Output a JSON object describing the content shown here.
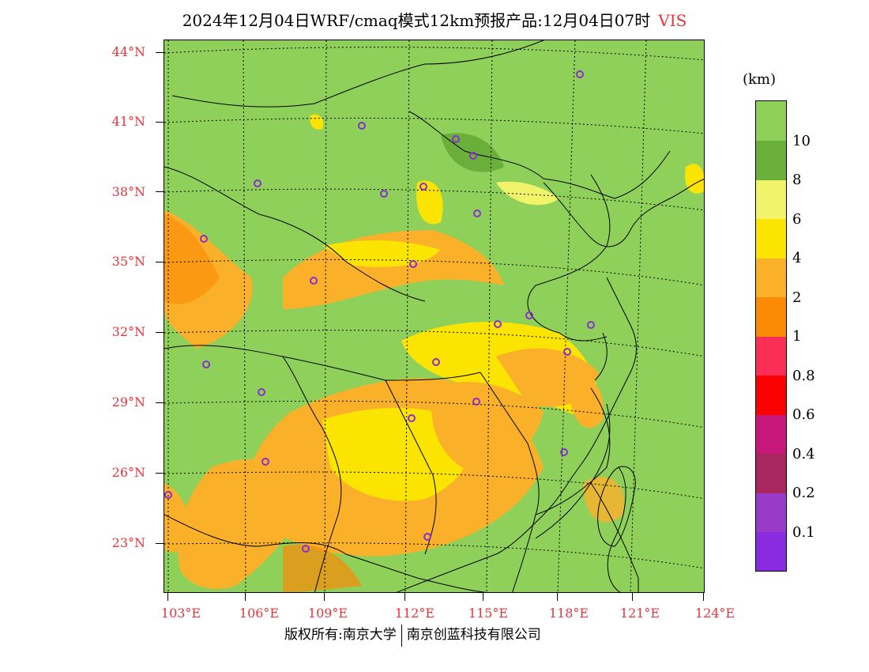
{
  "title": {
    "text": "2024年12月04日WRF/cmaq模式12km预报产品:12月04日07时",
    "variable": "VIS"
  },
  "colors": {
    "axis_label": "#e8343a",
    "city_marker": "#8a2fcf",
    "background_land": "#8fd05a"
  },
  "axes": {
    "lat_labels": [
      "44°N",
      "41°N",
      "38°N",
      "35°N",
      "32°N",
      "29°N",
      "26°N",
      "23°N"
    ],
    "lon_labels": [
      "103°E",
      "106°E",
      "109°E",
      "112°E",
      "115°E",
      "118°E",
      "121°E",
      "124°E"
    ]
  },
  "legend": {
    "unit": "(km)",
    "labels": [
      "10",
      "8",
      "6",
      "4",
      "2",
      "1",
      "0.8",
      "0.6",
      "0.4",
      "0.2",
      "0.1"
    ],
    "colors": [
      "#8fd05a",
      "#6aaf3a",
      "#f1f36a",
      "#fbe400",
      "#fbb02a",
      "#fb8a05",
      "#fb2e55",
      "#fb0000",
      "#c8177a",
      "#a8275e",
      "#9a3ac8",
      "#8a2be2"
    ]
  },
  "footer": {
    "left": "版权所有:南京大学",
    "right": "南京创蓝科技有限公司"
  }
}
